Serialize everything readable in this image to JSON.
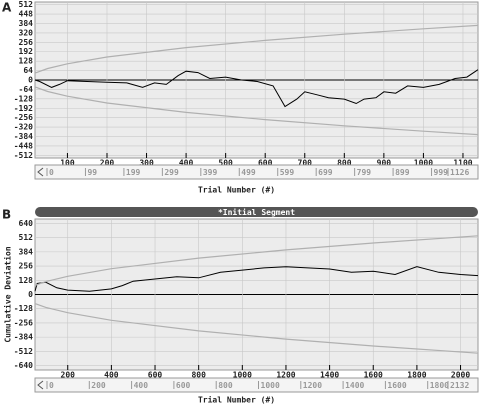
{
  "chart_data": [
    {
      "type": "line",
      "panel_label": "A",
      "x_label": "Trial Number (#)",
      "xlim": [
        18,
        1138
      ],
      "ylim": [
        -530,
        530
      ],
      "xticks": [
        100,
        200,
        300,
        400,
        500,
        600,
        700,
        800,
        900,
        1000,
        1100
      ],
      "yticks": [
        512,
        448,
        384,
        320,
        256,
        192,
        128,
        64,
        0,
        -64,
        -128,
        -192,
        -256,
        -320,
        -384,
        -448,
        -512
      ],
      "scroll_labels": [
        "0",
        "99",
        "199",
        "299",
        "399",
        "499",
        "599",
        "699",
        "799",
        "899",
        "999",
        "1126"
      ],
      "grid": true,
      "series": [
        {
          "color": "#000000",
          "x": [
            18,
            30,
            60,
            80,
            100,
            150,
            200,
            250,
            290,
            320,
            350,
            380,
            400,
            430,
            460,
            500,
            540,
            580,
            620,
            650,
            680,
            700,
            730,
            760,
            800,
            830,
            850,
            880,
            900,
            930,
            960,
            1000,
            1040,
            1080,
            1110,
            1138
          ],
          "values": [
            0,
            -10,
            -50,
            -30,
            -5,
            -10,
            -15,
            -20,
            -50,
            -20,
            -30,
            30,
            60,
            50,
            10,
            20,
            0,
            -10,
            -40,
            -180,
            -130,
            -80,
            -100,
            -120,
            -130,
            -160,
            -130,
            -120,
            -80,
            -90,
            -40,
            -50,
            -30,
            10,
            20,
            70
          ]
        },
        {
          "color": "#b0b0b0",
          "x": [
            18,
            50,
            100,
            200,
            400,
            600,
            800,
            1000,
            1138
          ],
          "values": [
            47,
            78,
            110,
            156,
            220,
            269,
            311,
            348,
            371
          ]
        },
        {
          "color": "#b0b0b0",
          "x": [
            18,
            50,
            100,
            200,
            400,
            600,
            800,
            1000,
            1138
          ],
          "values": [
            -47,
            -78,
            -110,
            -156,
            -220,
            -269,
            -311,
            -348,
            -371
          ]
        }
      ]
    },
    {
      "type": "line",
      "panel_label": "B",
      "x_label": "Trial Number (#)",
      "y_label": "Cumulative Deviation",
      "segment": "*Initial Segment",
      "xlim": [
        50,
        2080
      ],
      "ylim": [
        -680,
        680
      ],
      "xticks": [
        200,
        400,
        600,
        800,
        1000,
        1200,
        1400,
        1600,
        1800,
        2000
      ],
      "yticks": [
        640,
        512,
        384,
        256,
        128,
        0,
        -128,
        -256,
        -384,
        -512,
        -640
      ],
      "scroll_labels": [
        "0",
        "200",
        "400",
        "600",
        "800",
        "1000",
        "1200",
        "1400",
        "1600",
        "1800",
        "2132"
      ],
      "grid": true,
      "series": [
        {
          "color": "#000000",
          "x": [
            50,
            60,
            100,
            150,
            200,
            300,
            400,
            450,
            500,
            600,
            700,
            800,
            900,
            1000,
            1100,
            1200,
            1300,
            1400,
            1500,
            1600,
            1700,
            1800,
            1900,
            2000,
            2080
          ],
          "values": [
            30,
            100,
            110,
            60,
            40,
            30,
            50,
            80,
            120,
            140,
            160,
            150,
            200,
            220,
            240,
            250,
            240,
            230,
            200,
            210,
            180,
            250,
            200,
            180,
            170
          ]
        },
        {
          "color": "#b0b0b0",
          "x": [
            50,
            100,
            200,
            400,
            800,
            1200,
            1600,
            2080
          ],
          "values": [
            82,
            116,
            164,
            232,
            328,
            402,
            464,
            529
          ]
        },
        {
          "color": "#b0b0b0",
          "x": [
            50,
            100,
            200,
            400,
            800,
            1200,
            1600,
            2080
          ],
          "values": [
            -82,
            -116,
            -164,
            -232,
            -328,
            -402,
            -464,
            -529
          ]
        }
      ]
    }
  ]
}
